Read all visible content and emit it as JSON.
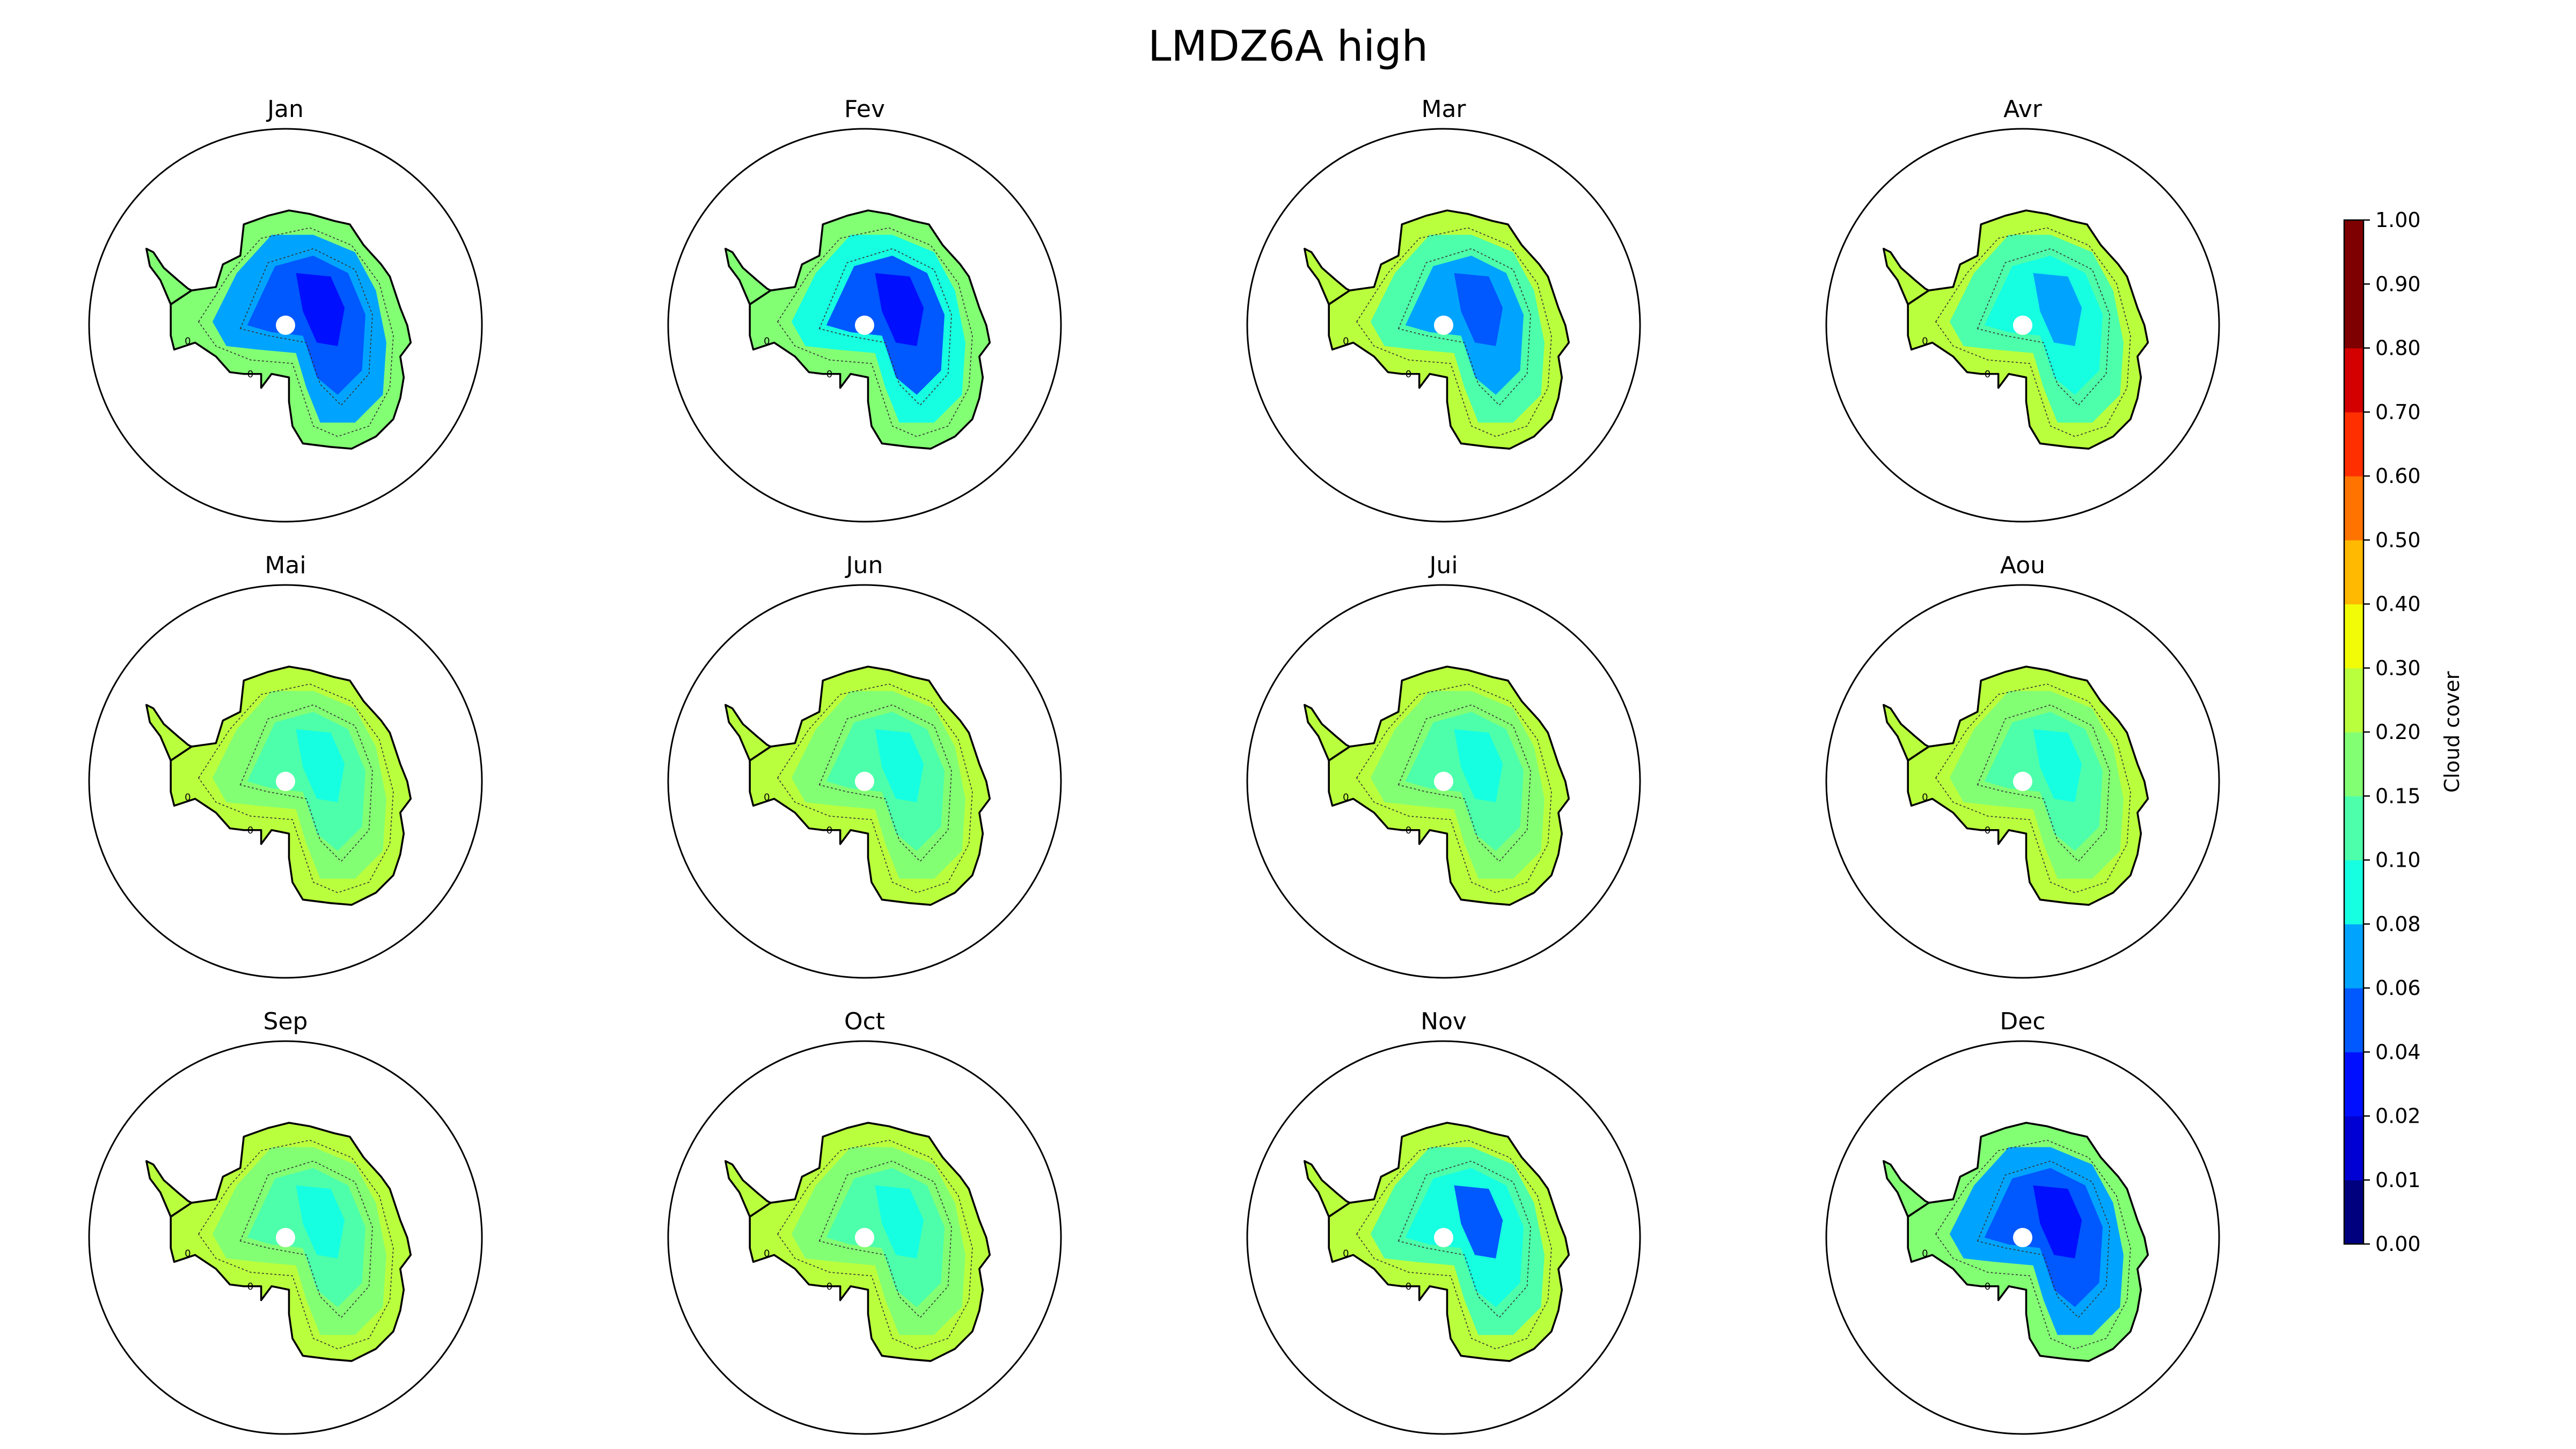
{
  "chart_data": {
    "type": "heatmap",
    "title": "LMDZ6A high",
    "projection": "south-polar-stereographic",
    "variable": "high cloud cover",
    "layout": "3 rows x 4 columns",
    "panels": [
      {
        "title": "Jan",
        "mean_cloud_cover": 0.07,
        "min_cloud_cover": 0.02,
        "max_cloud_cover": 0.16
      },
      {
        "title": "Fev",
        "mean_cloud_cover": 0.08,
        "min_cloud_cover": 0.02,
        "max_cloud_cover": 0.16
      },
      {
        "title": "Mar",
        "mean_cloud_cover": 0.11,
        "min_cloud_cover": 0.04,
        "max_cloud_cover": 0.2
      },
      {
        "title": "Avr",
        "mean_cloud_cover": 0.13,
        "min_cloud_cover": 0.06,
        "max_cloud_cover": 0.24
      },
      {
        "title": "Mai",
        "mean_cloud_cover": 0.15,
        "min_cloud_cover": 0.08,
        "max_cloud_cover": 0.26
      },
      {
        "title": "Jun",
        "mean_cloud_cover": 0.16,
        "min_cloud_cover": 0.09,
        "max_cloud_cover": 0.27
      },
      {
        "title": "Jui",
        "mean_cloud_cover": 0.16,
        "min_cloud_cover": 0.09,
        "max_cloud_cover": 0.27
      },
      {
        "title": "Aou",
        "mean_cloud_cover": 0.16,
        "min_cloud_cover": 0.09,
        "max_cloud_cover": 0.27
      },
      {
        "title": "Sep",
        "mean_cloud_cover": 0.16,
        "min_cloud_cover": 0.09,
        "max_cloud_cover": 0.27
      },
      {
        "title": "Oct",
        "mean_cloud_cover": 0.15,
        "min_cloud_cover": 0.08,
        "max_cloud_cover": 0.25
      },
      {
        "title": "Nov",
        "mean_cloud_cover": 0.11,
        "min_cloud_cover": 0.05,
        "max_cloud_cover": 0.2
      },
      {
        "title": "Dec",
        "mean_cloud_cover": 0.07,
        "min_cloud_cover": 0.02,
        "max_cloud_cover": 0.16
      }
    ],
    "contour_labels": [
      "0",
      "0"
    ],
    "colorbar": {
      "label": "Cloud cover",
      "colormap": "jet",
      "ticks": [
        "0.00",
        "0.01",
        "0.02",
        "0.04",
        "0.06",
        "0.08",
        "0.10",
        "0.15",
        "0.20",
        "0.30",
        "0.40",
        "0.50",
        "0.60",
        "0.70",
        "0.80",
        "0.90",
        "1.00"
      ],
      "level_colors": [
        "#00007f",
        "#0000d4",
        "#0010ff",
        "#0058ff",
        "#00a4ff",
        "#16ffe1",
        "#4dffaa",
        "#83ff74",
        "#baff3d",
        "#f1fc06",
        "#ffb900",
        "#ff7300",
        "#ff2f00",
        "#d40000",
        "#7f0000",
        "#7f0000"
      ]
    }
  }
}
